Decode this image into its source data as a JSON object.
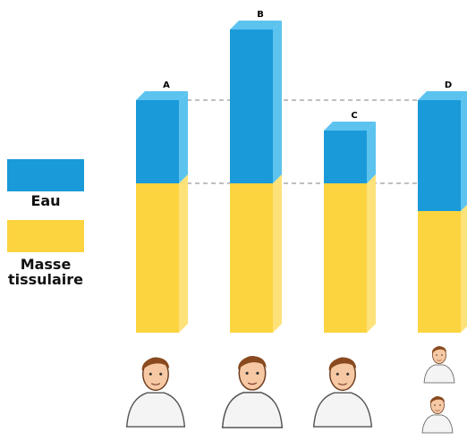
{
  "chart_data": {
    "type": "stacked-bar-3d",
    "categories": [
      "A",
      "B",
      "C",
      "D"
    ],
    "series": [
      {
        "name": "Masse tissulaire",
        "color": "#fcd440",
        "side_color": "#fde27a",
        "values": [
          167,
          167,
          167,
          136
        ]
      },
      {
        "name": "Eau",
        "color": "#1a9ad8",
        "side_color": "#5cc3ef",
        "values": [
          93,
          172,
          59,
          124
        ]
      }
    ],
    "ylim": [
      0,
      340
    ],
    "legend": "left"
  }
}
